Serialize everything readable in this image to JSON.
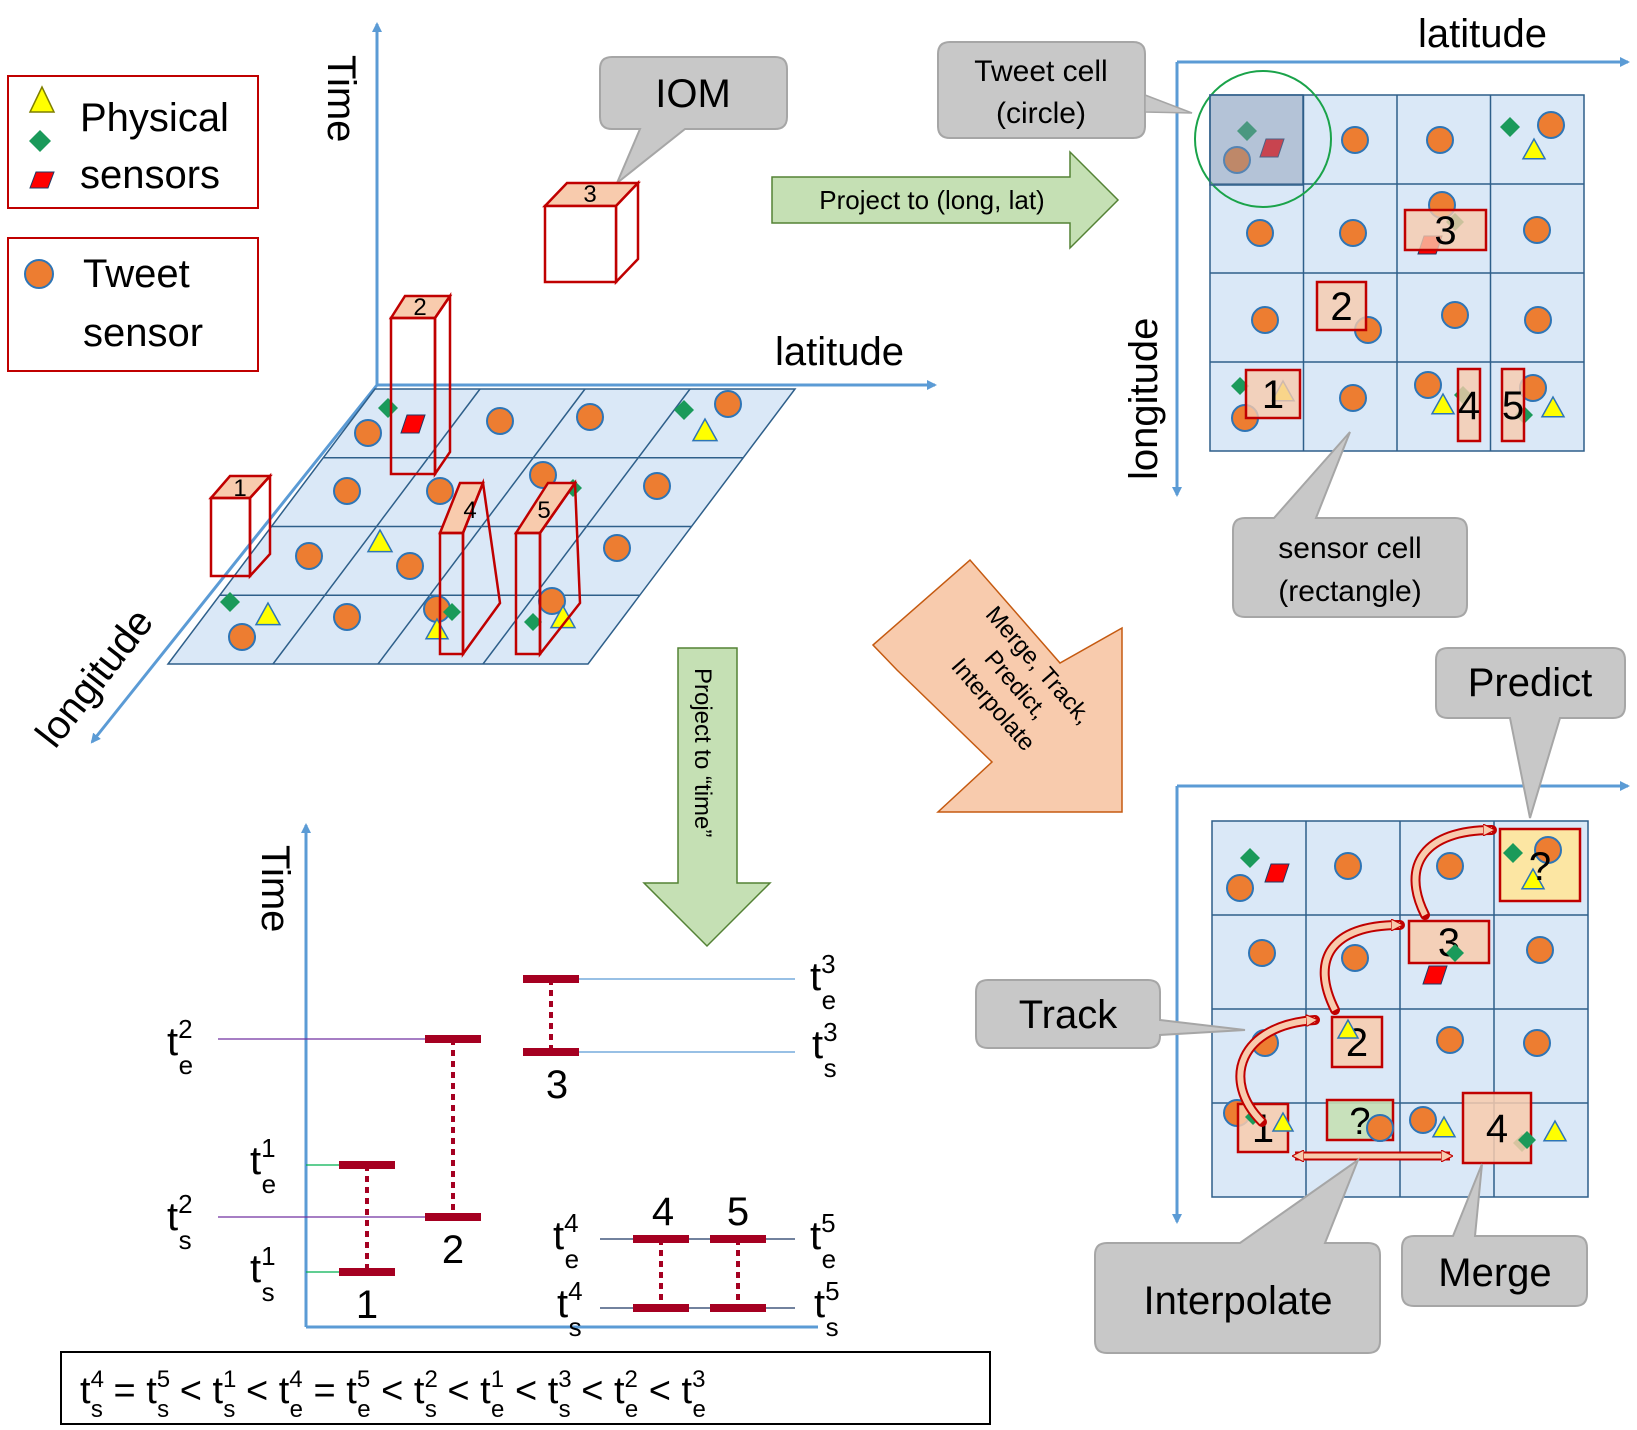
{
  "legend": {
    "physical_line1": "Physical",
    "physical_line2": "sensors",
    "tweet_line1": "Tweet",
    "tweet_line2": "sensor"
  },
  "view3d": {
    "time_axis": "Time",
    "latitude_axis": "latitude",
    "longitude_axis": "longitude",
    "iom_callout": "IOM",
    "box_labels": [
      "1",
      "2",
      "3",
      "4",
      "5"
    ]
  },
  "arrows": {
    "project_latlong": "Project to (long, lat)",
    "project_time": "Project to “time”",
    "merge_line1": "Merge, Track,",
    "merge_line2": "Predict,",
    "merge_line3": "Interpolate"
  },
  "topview": {
    "latitude_axis": "latitude",
    "longitude_axis": "longitude",
    "tweet_cell_line1": "Tweet cell",
    "tweet_cell_line2": "(circle)",
    "sensor_cell_line1": "sensor cell",
    "sensor_cell_line2": "(rectangle)",
    "box_labels": [
      "1",
      "2",
      "3",
      "4",
      "5"
    ]
  },
  "timeline": {
    "time_axis": "Time",
    "t": "t",
    "sub_e": "e",
    "sub_s": "s",
    "sup": [
      "1",
      "2",
      "3",
      "4",
      "5"
    ],
    "interval_labels": [
      "1",
      "2",
      "3",
      "4",
      "5"
    ]
  },
  "equation": {
    "terms": [
      {
        "sup": "4",
        "sub": "s",
        "op": " = "
      },
      {
        "sup": "5",
        "sub": "s",
        "op": " < "
      },
      {
        "sup": "1",
        "sub": "s",
        "op": " < "
      },
      {
        "sup": "4",
        "sub": "e",
        "op": " = "
      },
      {
        "sup": "5",
        "sub": "e",
        "op": " < "
      },
      {
        "sup": "2",
        "sub": "s",
        "op": " < "
      },
      {
        "sup": "1",
        "sub": "e",
        "op": " < "
      },
      {
        "sup": "3",
        "sub": "s",
        "op": " < "
      },
      {
        "sup": "2",
        "sub": "e",
        "op": " < "
      },
      {
        "sup": "3",
        "sub": "e",
        "op": ""
      }
    ]
  },
  "ops": {
    "predict": "Predict",
    "track": "Track",
    "interpolate": "Interpolate",
    "merge": "Merge",
    "question": "?",
    "box_labels": [
      "1",
      "2",
      "3",
      "4"
    ]
  },
  "colors": {
    "axis": "#5b9bd5",
    "grid_fill": "#dae8f7",
    "grid_line": "#2e5f8a",
    "box_red": "#c00000",
    "box_fill": "#f8cbad",
    "tweet_orange": "#ed7d31",
    "physical_green": "#1a9a5a",
    "physical_yellow": "#ffff00",
    "callout_gray": "#c8c8c8",
    "arrow_green": "#c5e0b4",
    "arrow_salmon": "#f8cbad",
    "interval_red": "#a50021"
  }
}
